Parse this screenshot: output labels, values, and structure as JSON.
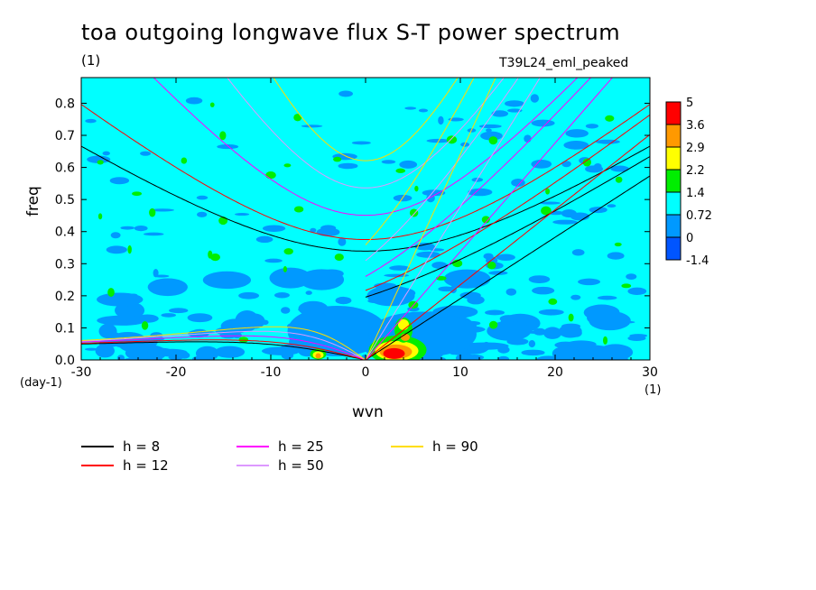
{
  "chart_data": {
    "type": "heatmap",
    "title": "toa outgoing longwave flux S-T power spectrum",
    "subtitle_left": "(1)",
    "subtitle_right": "T39L24_eml_peaked",
    "xlabel": "wvn",
    "ylabel": "freq",
    "x_unit": "(1)",
    "y_unit": "(day-1)",
    "xlim": [
      -30,
      30
    ],
    "ylim": [
      0.0,
      0.88
    ],
    "x_ticks": [
      "-30",
      "-20",
      "-10",
      "0",
      "10",
      "20",
      "30"
    ],
    "y_ticks": [
      "0.0",
      "0.1",
      "0.2",
      "0.3",
      "0.4",
      "0.5",
      "0.6",
      "0.7",
      "0.8"
    ],
    "colorbar": {
      "levels": [
        "5",
        "3.6",
        "2.9",
        "2.2",
        "1.4",
        "0.72",
        "0",
        "-1.4"
      ],
      "colors": [
        "#ff0000",
        "#ff9900",
        "#ffff00",
        "#00ee00",
        "#00ffff",
        "#0099ff",
        "#0055ff"
      ]
    },
    "background_color": "#00ffff",
    "dispersion_curves": [
      {
        "name": "h =  8",
        "h": 8,
        "color": "#000000"
      },
      {
        "name": "h = 12",
        "h": 12,
        "color": "#ff0000"
      },
      {
        "name": "h = 25",
        "h": 25,
        "color": "#ff00ff"
      },
      {
        "name": "h = 50",
        "h": 50,
        "color": "#dd99ff"
      },
      {
        "name": "h = 90",
        "h": 90,
        "color": "#ffdd00"
      }
    ],
    "features": [
      {
        "name": "kelvin-peak",
        "wvn": 3,
        "freq": 0.02,
        "level": "5"
      },
      {
        "name": "kelvin-secondary",
        "wvn": 4,
        "freq": 0.11,
        "level": "3.6"
      },
      {
        "name": "westward-peak",
        "wvn": -5,
        "freq": 0.01,
        "level": "3.6"
      }
    ]
  },
  "legend": {
    "items": [
      "h =  8",
      "h = 12",
      "h = 25",
      "h = 50",
      "h = 90"
    ]
  }
}
